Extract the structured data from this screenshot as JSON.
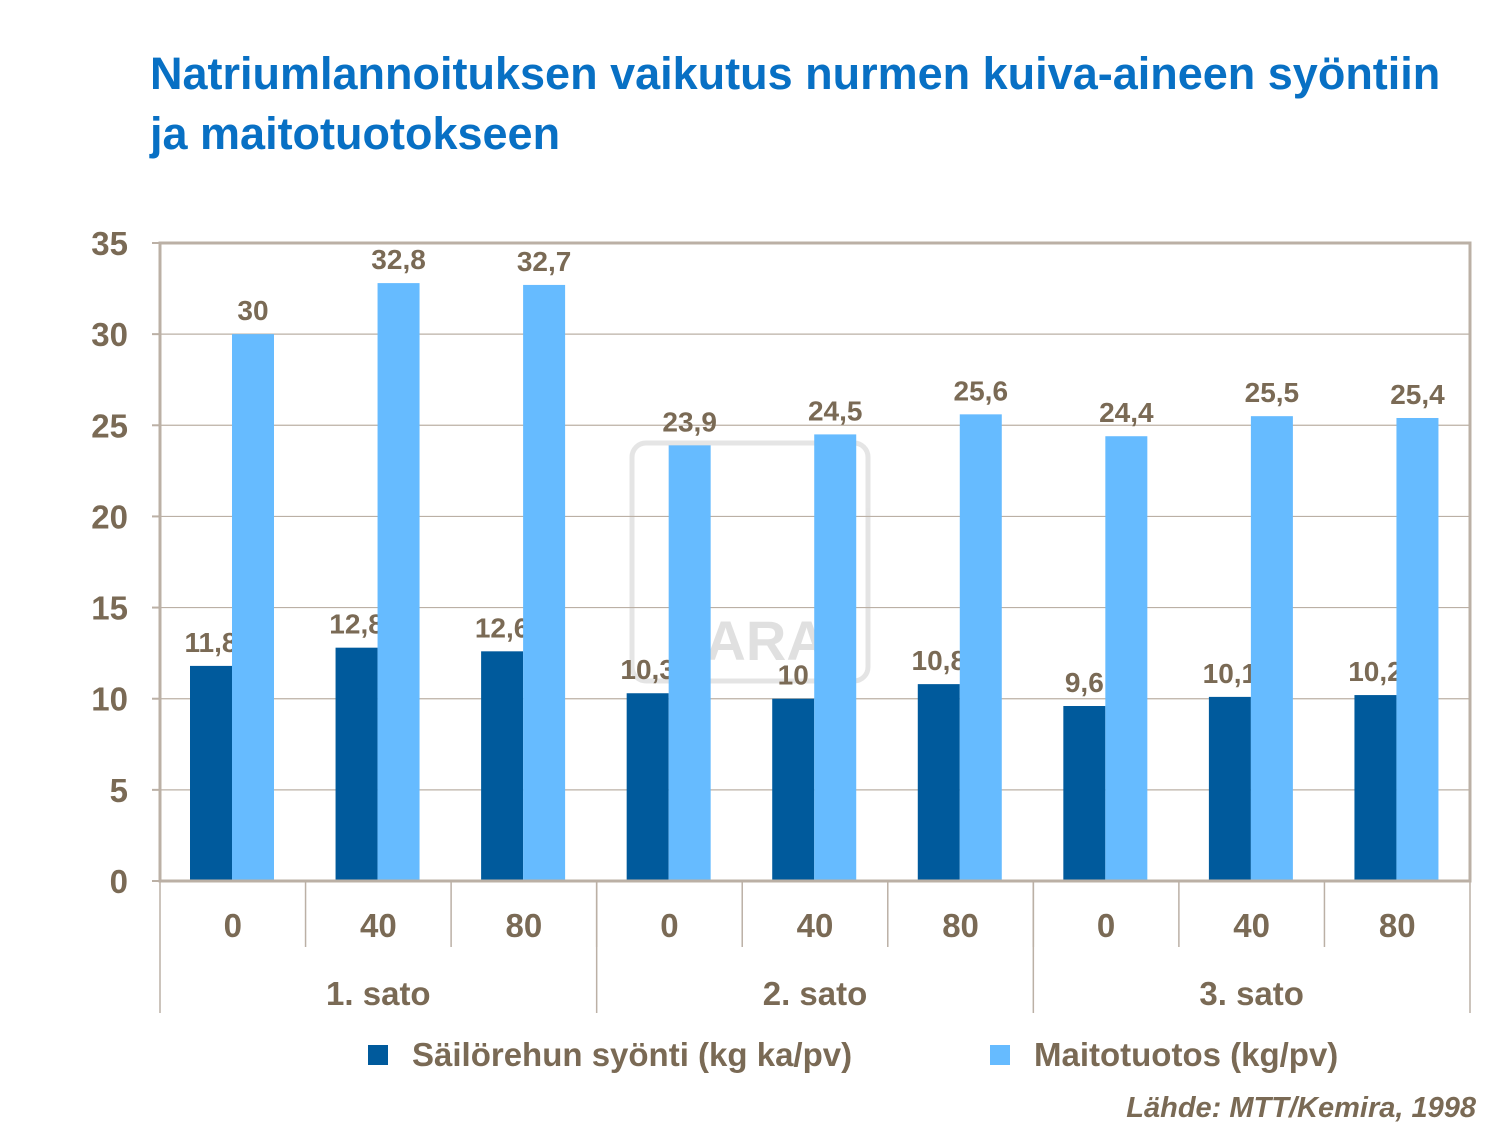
{
  "title": "Natriumlannoituksen vaikutus nurmen kuiva-aineen syöntiin ja maitotuotokseen",
  "source": "Lähde: MTT/Kemira, 1998",
  "watermark": "YARA",
  "chart_data": {
    "type": "bar",
    "title": "Natriumlannoituksen vaikutus nurmen kuiva-aineen syöntiin ja maitotuotokseen",
    "categories": [
      "0",
      "40",
      "80",
      "0",
      "40",
      "80",
      "0",
      "40",
      "80"
    ],
    "groups": [
      {
        "label": "1. sato",
        "span": 3
      },
      {
        "label": "2. sato",
        "span": 3
      },
      {
        "label": "3. sato",
        "span": 3
      }
    ],
    "series": [
      {
        "name": "Säilörehun syönti (kg ka/pv)",
        "color": "#005A9C",
        "values": [
          11.8,
          12.8,
          12.6,
          10.3,
          10,
          10.8,
          9.6,
          10.1,
          10.2
        ],
        "labels": [
          "11,8",
          "12,8",
          "12,6",
          "10,3",
          "10",
          "10,8",
          "9,6",
          "10,1",
          "10,2"
        ]
      },
      {
        "name": "Maitotuotos (kg/pv)",
        "color": "#66BBFF",
        "values": [
          30,
          32.8,
          32.7,
          23.9,
          24.5,
          25.6,
          24.4,
          25.5,
          25.4
        ],
        "labels": [
          "30",
          "32,8",
          "32,7",
          "23,9",
          "24,5",
          "25,6",
          "24,4",
          "25,5",
          "25,4"
        ]
      }
    ],
    "ylim": [
      0,
      35
    ],
    "yticks": [
      0,
      5,
      10,
      15,
      20,
      25,
      30,
      35
    ],
    "grid": true,
    "legend": "bottom",
    "xlabel": "",
    "ylabel": ""
  }
}
